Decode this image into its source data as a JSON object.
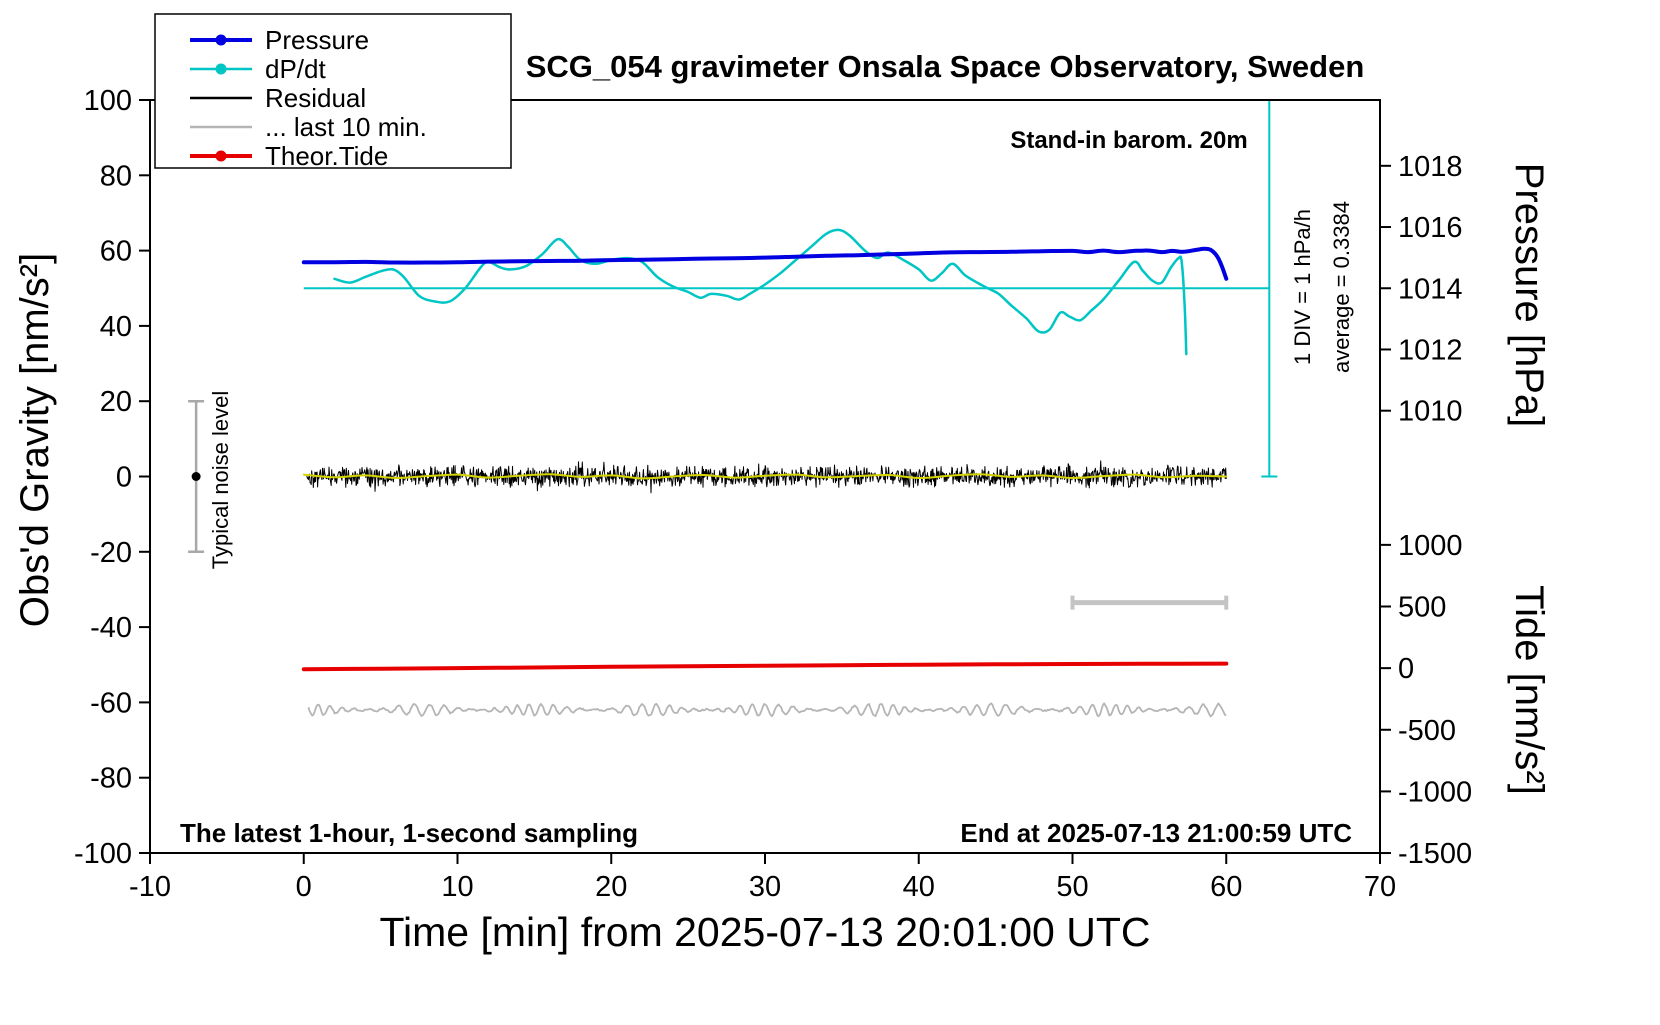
{
  "title": "SCG_054 gravimeter Onsala Space Observatory, Sweden",
  "annotations": {
    "barometer": "Stand-in barom. 20m",
    "div_scale": "1 DIV = 1 hPa/h",
    "average": "average = 0.3384",
    "noise_level": "Typical noise level",
    "sampling_note": "The latest 1-hour, 1-second sampling",
    "end_time": "End at 2025-07-13 21:00:59 UTC"
  },
  "legend": {
    "items": [
      {
        "label": "Pressure",
        "color": "#0000e0",
        "width": 4,
        "marker": true
      },
      {
        "label": "dP/dt",
        "color": "#00c5c5",
        "width": 2.5,
        "marker": true
      },
      {
        "label": "Residual",
        "color": "#000000",
        "width": 2.5,
        "marker": false
      },
      {
        "label": "... last 10 min.",
        "color": "#b5b5b5",
        "width": 2.5,
        "marker": false
      },
      {
        "label": "Theor.Tide",
        "color": "#e60000",
        "width": 4,
        "marker": true
      }
    ]
  },
  "chart_data": {
    "type": "line",
    "axes": {
      "x": {
        "label": "Time [min] from 2025-07-13 20:01:00 UTC",
        "min": -10,
        "max": 70,
        "ticks": [
          -10,
          0,
          10,
          20,
          30,
          40,
          50,
          60,
          70
        ]
      },
      "gravity": {
        "label": "Obs'd Gravity [nm/s²]",
        "min": -100,
        "max": 100,
        "ticks": [
          -100,
          -80,
          -60,
          -40,
          -20,
          0,
          20,
          40,
          60,
          80,
          100
        ]
      },
      "pressure": {
        "label": "Pressure [hPa]",
        "ticks": [
          1010,
          1012,
          1014,
          1016,
          1018
        ],
        "gravity_of_1014": 50,
        "gravity_per_hpa": 8.13
      },
      "tide": {
        "label": "Tide [nm/s²]",
        "ticks": [
          1000,
          500,
          0,
          -500,
          -1000,
          -1500
        ],
        "gravity_of_zero": -50.9,
        "gravity_per_unit": 0.03274
      },
      "dpdt": {
        "zero_gravity": 50,
        "gravity_per_hpa_per_h": 20,
        "note": "1 DIV = 1 hPa/h"
      }
    },
    "series": [
      {
        "id": "theor_tide",
        "name": "Theor.Tide",
        "scale": "tide",
        "units": "nm/s2 (tide axis)",
        "color": "#e60000",
        "width": 4,
        "smooth": true,
        "points": [
          [
            0,
            -9
          ],
          [
            5,
            -4.5
          ],
          [
            10,
            0.5
          ],
          [
            15,
            5.5
          ],
          [
            20,
            10.5
          ],
          [
            25,
            15
          ],
          [
            30,
            19.5
          ],
          [
            35,
            24
          ],
          [
            40,
            28
          ],
          [
            45,
            31
          ],
          [
            50,
            33.5
          ],
          [
            55,
            35.5
          ],
          [
            60,
            37
          ]
        ]
      },
      {
        "id": "residual_smooth",
        "name": "Residual (smoothed)",
        "scale": "gravity",
        "units": "nm/s2 (gravity axis)",
        "color": "#d4d400",
        "width": 2,
        "smooth": true,
        "points": [
          [
            0,
            0.5
          ],
          [
            2,
            -0.2
          ],
          [
            4,
            0.3
          ],
          [
            6,
            -0.4
          ],
          [
            8,
            0.1
          ],
          [
            10,
            0.5
          ],
          [
            12,
            -0.3
          ],
          [
            14,
            0.2
          ],
          [
            16,
            0.6
          ],
          [
            18,
            -0.1
          ],
          [
            20,
            0.3
          ],
          [
            22,
            -0.5
          ],
          [
            24,
            0.0
          ],
          [
            26,
            0.4
          ],
          [
            28,
            -0.3
          ],
          [
            30,
            0.2
          ],
          [
            32,
            0.5
          ],
          [
            34,
            -0.2
          ],
          [
            36,
            0.1
          ],
          [
            38,
            0.4
          ],
          [
            40,
            -0.4
          ],
          [
            42,
            0.2
          ],
          [
            44,
            0.6
          ],
          [
            46,
            -0.1
          ],
          [
            48,
            0.3
          ],
          [
            50,
            -0.4
          ],
          [
            52,
            0.1
          ],
          [
            54,
            0.5
          ],
          [
            56,
            -0.2
          ],
          [
            58,
            0.2
          ],
          [
            60,
            0.0
          ]
        ]
      },
      {
        "id": "dpdt",
        "name": "dP/dt",
        "scale": "dpdt",
        "units": "hPa/h",
        "color": "#00c5c5",
        "width": 2.5,
        "smooth": true,
        "points": [
          [
            2,
            0.125
          ],
          [
            3,
            0.075
          ],
          [
            4,
            0.15
          ],
          [
            5,
            0.225
          ],
          [
            5.8,
            0.25
          ],
          [
            6.5,
            0.15
          ],
          [
            7.5,
            -0.1
          ],
          [
            8.5,
            -0.175
          ],
          [
            9.5,
            -0.175
          ],
          [
            10.5,
            0.0
          ],
          [
            11.5,
            0.275
          ],
          [
            12,
            0.35
          ],
          [
            12.8,
            0.275
          ],
          [
            13.5,
            0.25
          ],
          [
            14.5,
            0.3
          ],
          [
            15.5,
            0.45
          ],
          [
            16.5,
            0.65
          ],
          [
            17.2,
            0.55
          ],
          [
            18,
            0.375
          ],
          [
            19,
            0.325
          ],
          [
            20,
            0.375
          ],
          [
            21,
            0.4
          ],
          [
            22,
            0.35
          ],
          [
            23,
            0.15
          ],
          [
            24,
            0.025
          ],
          [
            25,
            -0.05
          ],
          [
            25.8,
            -0.125
          ],
          [
            26.5,
            -0.075
          ],
          [
            27.5,
            -0.1
          ],
          [
            28.3,
            -0.15
          ],
          [
            29,
            -0.075
          ],
          [
            30,
            0.05
          ],
          [
            31,
            0.2
          ],
          [
            32,
            0.375
          ],
          [
            33,
            0.55
          ],
          [
            34,
            0.725
          ],
          [
            34.8,
            0.775
          ],
          [
            35.5,
            0.7
          ],
          [
            36.5,
            0.5
          ],
          [
            37.3,
            0.4
          ],
          [
            38,
            0.475
          ],
          [
            39,
            0.375
          ],
          [
            40,
            0.25
          ],
          [
            40.8,
            0.1
          ],
          [
            41.5,
            0.2
          ],
          [
            42.2,
            0.325
          ],
          [
            43,
            0.175
          ],
          [
            43.8,
            0.075
          ],
          [
            44.5,
            0.0
          ],
          [
            45.2,
            -0.075
          ],
          [
            46,
            -0.225
          ],
          [
            47,
            -0.4
          ],
          [
            47.8,
            -0.575
          ],
          [
            48.5,
            -0.55
          ],
          [
            49.2,
            -0.325
          ],
          [
            49.8,
            -0.375
          ],
          [
            50.5,
            -0.425
          ],
          [
            51.2,
            -0.3
          ],
          [
            52,
            -0.15
          ],
          [
            53,
            0.1
          ],
          [
            54,
            0.35
          ],
          [
            54.6,
            0.225
          ],
          [
            55.2,
            0.1
          ],
          [
            55.8,
            0.075
          ],
          [
            56.4,
            0.275
          ],
          [
            56.9,
            0.4
          ],
          [
            57.1,
            0.35
          ],
          [
            57.3,
            -0.25
          ],
          [
            57.4,
            -0.875
          ]
        ]
      },
      {
        "id": "pressure",
        "name": "Pressure",
        "scale": "pressure",
        "units": "hPa",
        "color": "#0000e0",
        "width": 4,
        "smooth": true,
        "points": [
          [
            0,
            1014.85
          ],
          [
            2,
            1014.85
          ],
          [
            4,
            1014.86
          ],
          [
            6,
            1014.84
          ],
          [
            8,
            1014.84
          ],
          [
            10,
            1014.85
          ],
          [
            12,
            1014.87
          ],
          [
            14,
            1014.88
          ],
          [
            16,
            1014.89
          ],
          [
            18,
            1014.9
          ],
          [
            20,
            1014.92
          ],
          [
            22,
            1014.93
          ],
          [
            24,
            1014.95
          ],
          [
            26,
            1014.97
          ],
          [
            28,
            1014.98
          ],
          [
            30,
            1015.0
          ],
          [
            32,
            1015.03
          ],
          [
            34,
            1015.06
          ],
          [
            36,
            1015.08
          ],
          [
            38,
            1015.11
          ],
          [
            40,
            1015.14
          ],
          [
            42,
            1015.17
          ],
          [
            44,
            1015.18
          ],
          [
            46,
            1015.19
          ],
          [
            48,
            1015.21
          ],
          [
            50,
            1015.22
          ],
          [
            51,
            1015.18
          ],
          [
            52,
            1015.23
          ],
          [
            53,
            1015.18
          ],
          [
            54,
            1015.22
          ],
          [
            55,
            1015.23
          ],
          [
            55.8,
            1015.18
          ],
          [
            56.5,
            1015.22
          ],
          [
            57.2,
            1015.19
          ],
          [
            58,
            1015.25
          ],
          [
            58.6,
            1015.29
          ],
          [
            59,
            1015.25
          ],
          [
            59.4,
            1015.05
          ],
          [
            59.7,
            1014.74
          ],
          [
            60,
            1014.31
          ]
        ]
      }
    ],
    "generated_series": [
      {
        "id": "residual",
        "name": "Residual",
        "scale": "gravity",
        "units": "nm/s2 (gravity axis)",
        "color": "#000000",
        "width": 1,
        "generator": "noise",
        "seed": 42,
        "baseline": 0,
        "amplitude": 3.2,
        "x_range": [
          0.2,
          60
        ],
        "samples": 1700,
        "character": "1-second high-frequency noise band around zero"
      },
      {
        "id": "last10",
        "name": "... last 10 min.",
        "scale": "gravity",
        "units": "nm/s2 (gravity axis)",
        "color": "#b5b5b5",
        "width": 1.8,
        "generator": "wiggle",
        "seed": 7,
        "baseline": -62,
        "amplitude": 1.6,
        "x_range": [
          0.3,
          60
        ],
        "samples": 700,
        "character": "quasi-periodic oscillation"
      }
    ],
    "reference": {
      "dpdt_zero_line": {
        "gravity": 50,
        "x_from": 0,
        "x_to": 62.8,
        "color": "#00c5c5",
        "width": 2
      },
      "div_bar": {
        "x": 62.8,
        "gravity_from": 0,
        "gravity_to": 100,
        "color": "#00c5c5",
        "width": 2,
        "cap": 8
      },
      "noise_bar": {
        "x": -7,
        "gravity_from": -20,
        "gravity_to": 20,
        "color": "#a8a8a8",
        "width": 2.5,
        "cap": 8,
        "dot_gravity": 0,
        "dot_color": "#000000"
      },
      "last10_bar": {
        "x_from": 50,
        "x_to": 60,
        "gravity": -33.5,
        "color": "#c4c4c4",
        "width": 5,
        "cap": 7
      }
    }
  }
}
